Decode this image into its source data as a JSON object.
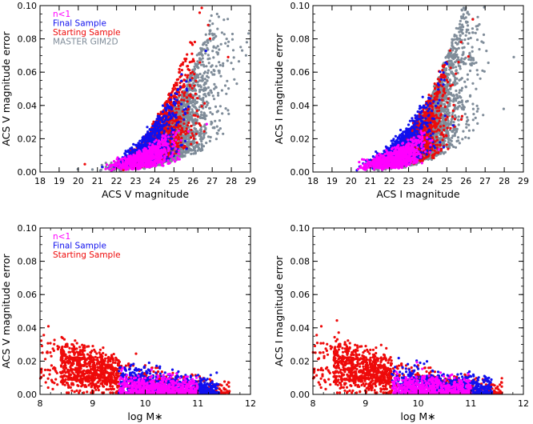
{
  "colors": {
    "n_lt_1": "#ff00ff",
    "final_sample": "#1010ee",
    "starting_sample": "#ee0a0a",
    "master_gim2d": "#7f8c99",
    "axis": "#000000"
  },
  "chart_data": [
    {
      "type": "scatter",
      "panel": "top-left",
      "xlabel": "ACS V magnitude",
      "ylabel": "ACS V magnitude error",
      "xlim": [
        18,
        29
      ],
      "ylim": [
        0,
        0.1
      ],
      "xticks": [
        18,
        19,
        20,
        21,
        22,
        23,
        24,
        25,
        26,
        27,
        28,
        29
      ],
      "xtick_labels": [
        "18",
        "19",
        "20",
        "21",
        "22",
        "23",
        "24",
        "25",
        "26",
        "27",
        "28",
        "29"
      ],
      "yticks": [
        0,
        0.02,
        0.04,
        0.06,
        0.08,
        0.1
      ],
      "ytick_labels": [
        "0.00",
        "0.02",
        "0.04",
        "0.06",
        "0.08",
        "0.10"
      ],
      "legend": [
        "n<1",
        "Final Sample",
        "Starting Sample",
        "MASTER GIM2D"
      ],
      "legend_position": "top-left",
      "series": [
        {
          "name": "MASTER GIM2D",
          "x_center": 24.8,
          "x_spread": 1.6,
          "y_shape": "rising",
          "y_max": 0.065,
          "note": "densest grey cloud, extends to x≈29"
        },
        {
          "name": "Starting Sample",
          "x_center": 24.3,
          "x_spread": 1.1,
          "y_shape": "rising",
          "y_max": 0.07
        },
        {
          "name": "Final Sample",
          "x_center": 23.8,
          "x_spread": 1.0,
          "y_shape": "rising",
          "y_max": 0.05
        },
        {
          "name": "n<1",
          "x_center": 23.5,
          "x_spread": 1.0,
          "y_shape": "rising",
          "y_max": 0.02
        }
      ]
    },
    {
      "type": "scatter",
      "panel": "top-right",
      "xlabel": "ACS I magnitude",
      "ylabel": "ACS I magnitude error",
      "xlim": [
        18,
        29
      ],
      "ylim": [
        0,
        0.1
      ],
      "xticks": [
        18,
        19,
        20,
        21,
        22,
        23,
        24,
        25,
        26,
        27,
        28,
        29
      ],
      "xtick_labels": [
        "18",
        "19",
        "20",
        "21",
        "22",
        "23",
        "24",
        "25",
        "26",
        "27",
        "28",
        "29"
      ],
      "yticks": [
        0,
        0.02,
        0.04,
        0.06,
        0.08,
        0.1
      ],
      "ytick_labels": [
        "0.00",
        "0.02",
        "0.04",
        "0.06",
        "0.08",
        "0.10"
      ],
      "series": [
        {
          "name": "MASTER GIM2D",
          "x_center": 24.0,
          "x_spread": 1.4,
          "y_shape": "rising",
          "y_max": 0.08
        },
        {
          "name": "Starting Sample",
          "x_center": 23.4,
          "x_spread": 1.1,
          "y_shape": "rising",
          "y_max": 0.06
        },
        {
          "name": "Final Sample",
          "x_center": 22.7,
          "x_spread": 1.1,
          "y_shape": "rising",
          "y_max": 0.045
        },
        {
          "name": "n<1",
          "x_center": 22.3,
          "x_spread": 1.0,
          "y_shape": "rising",
          "y_max": 0.02
        }
      ]
    },
    {
      "type": "scatter",
      "panel": "bottom-left",
      "xlabel": "log M∗",
      "ylabel": "ACS V magnitude error",
      "xlim": [
        8,
        12
      ],
      "ylim": [
        0,
        0.1
      ],
      "xticks": [
        8,
        9,
        10,
        11,
        12
      ],
      "xtick_labels": [
        "8",
        "9",
        "10",
        "11",
        "12"
      ],
      "yticks": [
        0,
        0.02,
        0.04,
        0.06,
        0.08,
        0.1
      ],
      "ytick_labels": [
        "0.00",
        "0.02",
        "0.04",
        "0.06",
        "0.08",
        "0.10"
      ],
      "legend": [
        "n<1",
        "Final Sample",
        "Starting Sample"
      ],
      "legend_position": "top-left",
      "mass_cut": 9.5,
      "series": [
        {
          "name": "Starting Sample",
          "x_range": [
            8.0,
            11.6
          ],
          "y_shape": "falling",
          "y_max": 0.06
        },
        {
          "name": "Final Sample",
          "x_range": [
            9.5,
            11.4
          ],
          "y_shape": "falling",
          "y_max": 0.05
        },
        {
          "name": "n<1",
          "x_range": [
            9.5,
            11.0
          ],
          "y_shape": "falling",
          "y_max": 0.02
        }
      ]
    },
    {
      "type": "scatter",
      "panel": "bottom-right",
      "xlabel": "log M∗",
      "ylabel": "ACS I magnitude error",
      "xlim": [
        8,
        12
      ],
      "ylim": [
        0,
        0.1
      ],
      "xticks": [
        8,
        9,
        10,
        11,
        12
      ],
      "xtick_labels": [
        "8",
        "9",
        "10",
        "11",
        "12"
      ],
      "yticks": [
        0,
        0.02,
        0.04,
        0.06,
        0.08,
        0.1
      ],
      "ytick_labels": [
        "0.00",
        "0.02",
        "0.04",
        "0.06",
        "0.08",
        "0.10"
      ],
      "mass_cut": 9.5,
      "series": [
        {
          "name": "Starting Sample",
          "x_range": [
            8.0,
            11.6
          ],
          "y_shape": "falling",
          "y_max": 0.06
        },
        {
          "name": "Final Sample",
          "x_range": [
            9.5,
            11.4
          ],
          "y_shape": "falling",
          "y_max": 0.05
        },
        {
          "name": "n<1",
          "x_range": [
            9.5,
            11.0
          ],
          "y_shape": "falling",
          "y_max": 0.02
        }
      ]
    }
  ]
}
